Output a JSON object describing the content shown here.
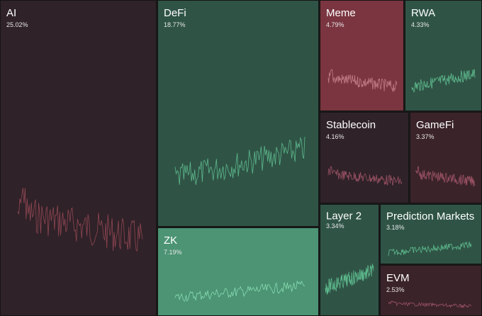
{
  "chart_data": {
    "type": "treemap",
    "categories": [
      "AI",
      "DeFi",
      "ZK",
      "Meme",
      "RWA",
      "Stablecoin",
      "GameFi",
      "Layer 2",
      "Prediction Markets",
      "EVM"
    ],
    "values": [
      25.02,
      18.77,
      7.19,
      4.79,
      4.33,
      4.16,
      3.37,
      3.34,
      3.18,
      2.53
    ],
    "value_labels": [
      "25.02%",
      "18.77%",
      "7.19%",
      "4.79%",
      "4.33%",
      "4.16%",
      "3.37%",
      "3.34%",
      "3.18%",
      "2.53%"
    ],
    "colors": [
      "#2f2228",
      "#2f5446",
      "#4c9474",
      "#7a3540",
      "#2f5446",
      "#2f2228",
      "#3a2329",
      "#2f5446",
      "#2f5446",
      "#3a2329"
    ]
  }
}
